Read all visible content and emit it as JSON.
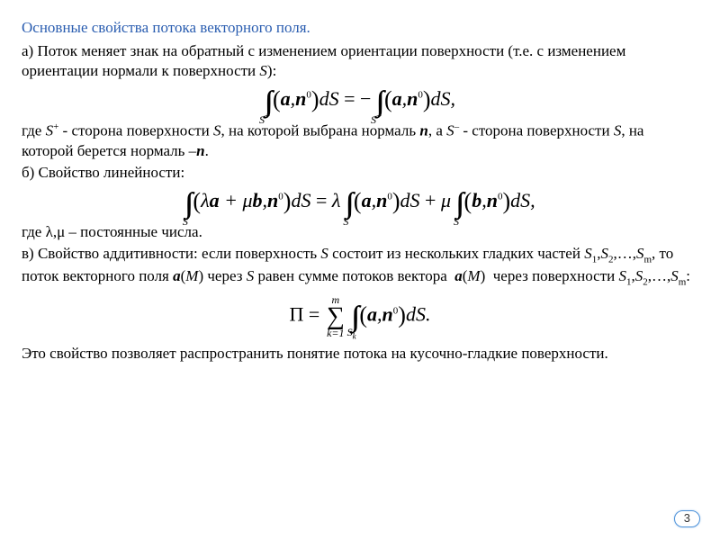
{
  "title": "Основные свойства потока векторного поля.",
  "para_a": "а) Поток меняет знак на обратный с изменением ориентации поверхности (т.е. с изменением ориентации нормали к поверхности S):",
  "formula1": {
    "int1_sub": "S+",
    "inner1": "(a,n⁰)",
    "eq": " = −",
    "int2_sub": "S−",
    "inner2": "(a,n⁰)",
    "tail": "dS,"
  },
  "para_a2_pre": "где ",
  "para_a2_s1": "S⁺",
  "para_a2_mid1": " - сторона поверхности ",
  "para_a2_s": "S",
  "para_a2_mid2": ", на которой выбрана нормаль ",
  "para_a2_n": "n",
  "para_a2_mid3": ", а ",
  "para_a2_s2": "S⁻",
  "para_a2_mid4": " - сторона поверхности ",
  "para_a2_mid5": ", на которой берется нормаль –",
  "para_a2_dot": ".",
  "para_b": "б) Свойство линейности:",
  "formula2": {
    "int1_sub": "S",
    "lhs": "(λa + μb,n⁰)dS = λ",
    "int2_sub": "S",
    "mid": "(a,n⁰)dS + μ",
    "int3_sub": "S",
    "rhs": "(b,n⁰)dS,"
  },
  "para_b2": "где λ,μ – постоянные числа.",
  "para_c1": "в) Свойство аддитивности: если поверхность S состоит из нескольких гладких частей S₁,S₂,…,Sₘ, то поток векторного поля a(M) через S равен сумме потоков вектора  a(M)  через поверхности S₁,S₂,…,Sₘ:",
  "formula3": {
    "lhs": "П = ",
    "sum_top": "m",
    "sum_bot": "k=1",
    "int_sub": "Sₖ",
    "body": "(a,n⁰)dS."
  },
  "para_final": "Это свойство позволяет распространить понятие потока на кусочно-гладкие поверхности.",
  "page_number": "3",
  "colors": {
    "title": "#2a5db0",
    "text": "#000000",
    "page_badge_border": "#4a90d9",
    "background": "#ffffff"
  },
  "fonts": {
    "body_family": "Times New Roman",
    "body_size_pt": 13,
    "formula_size_pt": 17,
    "title_size_pt": 13
  }
}
